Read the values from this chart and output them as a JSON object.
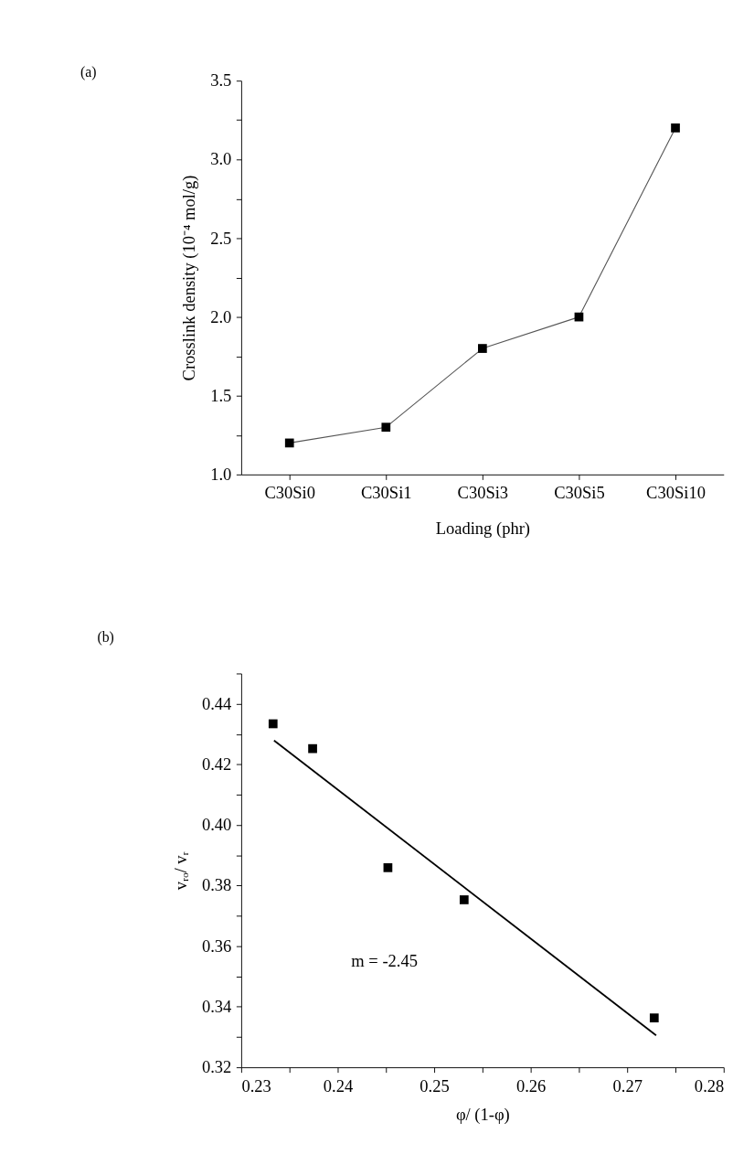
{
  "chart_data": [
    {
      "type": "line",
      "xlabel": "Loading (phr)",
      "ylabel": "Crosslink density (10⁻⁴ mol/g)",
      "annotations": [
        "(a)"
      ],
      "categories": [
        "C30Si0",
        "C30Si1",
        "C30Si3",
        "C30Si5",
        "C30Si10"
      ],
      "series": [
        {
          "color": "#000000",
          "values": [
            1.2,
            1.3,
            1.8,
            2.0,
            3.2
          ]
        }
      ],
      "marker": "square",
      "line_style": "solid",
      "grid": false,
      "legend": false,
      "ylim": [
        1.0,
        3.5
      ],
      "yticks": [
        {
          "value": 1.0,
          "label": "1.0"
        },
        {
          "value": 1.25,
          "label": null
        },
        {
          "value": 1.5,
          "label": "1.5"
        },
        {
          "value": 1.75,
          "label": null
        },
        {
          "value": 2.0,
          "label": "2.0"
        },
        {
          "value": 2.25,
          "label": null
        },
        {
          "value": 2.5,
          "label": "2.5"
        },
        {
          "value": 2.75,
          "label": null
        },
        {
          "value": 3.0,
          "label": "3.0"
        },
        {
          "value": 3.25,
          "label": null
        },
        {
          "value": 3.5,
          "label": "3.5"
        }
      ]
    },
    {
      "type": "scatter",
      "xlabel": "φ/ (1-φ)",
      "ylabel": "vᵣₒ/ vᵣ",
      "annotations": [
        "(b)",
        "m = -2.45"
      ],
      "series": [
        {
          "type": "scatter",
          "color": "#000000",
          "marker": "square",
          "x": [
            0.2333,
            0.2374,
            0.2452,
            0.2531,
            0.2728
          ],
          "values": [
            0.4334,
            0.4252,
            0.3859,
            0.3753,
            0.3363
          ]
        },
        {
          "type": "line",
          "color": "#000000",
          "marker": "none",
          "x": [
            0.2334,
            0.273
          ],
          "values": [
            0.4279,
            0.3305
          ]
        }
      ],
      "grid": false,
      "legend": false,
      "xlim": [
        0.23,
        0.28
      ],
      "xticks": [
        0.23,
        {
          "value": 0.235,
          "label": null
        },
        0.24,
        {
          "value": 0.245,
          "label": null
        },
        0.25,
        {
          "value": 0.255,
          "label": null
        },
        0.26,
        {
          "value": 0.265,
          "label": null
        },
        0.27,
        {
          "value": 0.275,
          "label": null
        },
        0.28
      ],
      "ylim": [
        0.32,
        0.45
      ],
      "yticks": [
        0.32,
        {
          "value": 0.33,
          "label": null
        },
        0.34,
        {
          "value": 0.35,
          "label": null
        },
        0.36,
        {
          "value": 0.37,
          "label": null
        },
        0.38,
        {
          "value": 0.39,
          "label": null
        },
        {
          "value": 0.4,
          "label": "0.40"
        },
        {
          "value": 0.41,
          "label": null
        },
        0.42,
        {
          "value": 0.43,
          "label": null
        },
        0.44,
        {
          "value": 0.45,
          "label": null
        }
      ]
    }
  ]
}
